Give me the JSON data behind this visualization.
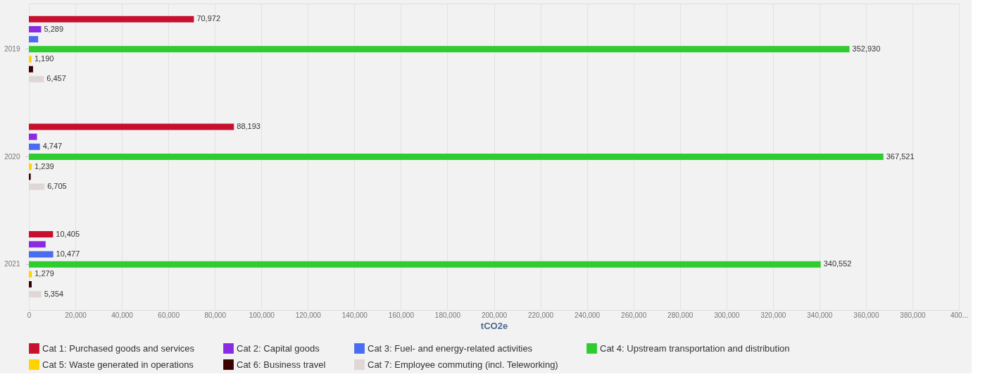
{
  "chart_data": {
    "type": "bar",
    "orientation": "horizontal",
    "categories": [
      "2019",
      "2020",
      "2021"
    ],
    "xlabel": "tCO2e",
    "series": [
      {
        "name": "Cat 1: Purchased goods and services",
        "color": "#c8102e",
        "values": [
          70972,
          88193,
          10405
        ],
        "value_labels": [
          "70,972",
          "88,193",
          "10,405"
        ]
      },
      {
        "name": "Cat 2: Capital goods",
        "color": "#8a2be2",
        "values": [
          5289,
          3500,
          7200
        ],
        "value_labels": [
          "5,289",
          null,
          null
        ]
      },
      {
        "name": "Cat 3: Fuel- and energy-related activities",
        "color": "#4a6cf0",
        "values": [
          4000,
          4747,
          10477
        ],
        "value_labels": [
          null,
          "4,747",
          "10,477"
        ]
      },
      {
        "name": "Cat 4: Upstream transportation and distribution",
        "color": "#2ecc2e",
        "values": [
          352930,
          367521,
          340552
        ],
        "value_labels": [
          "352,930",
          "367,521",
          "340,552"
        ]
      },
      {
        "name": "Cat 5: Waste generated in operations",
        "color": "#ffd200",
        "values": [
          1190,
          1239,
          1279
        ],
        "value_labels": [
          "1,190",
          "1,239",
          "1,279"
        ]
      },
      {
        "name": "Cat 6: Business travel",
        "color": "#3a0000",
        "values": [
          1800,
          800,
          1200
        ],
        "value_labels": [
          null,
          null,
          null
        ]
      },
      {
        "name": "Cat 7: Employee commuting (incl. Teleworking)",
        "color": "#e0d6d6",
        "values": [
          6457,
          6705,
          5354
        ],
        "value_labels": [
          "6,457",
          "6,705",
          "5,354"
        ]
      }
    ],
    "xlim": [
      0,
      400000
    ],
    "xticks": [
      0,
      {
        "value": 20000,
        "label": "20,000"
      },
      {
        "value": 40000,
        "label": "40,000"
      },
      {
        "value": 60000,
        "label": "60,000"
      },
      {
        "value": 80000,
        "label": "80,000"
      },
      {
        "value": 100000,
        "label": "100,000"
      },
      {
        "value": 120000,
        "label": "120,000"
      },
      {
        "value": 140000,
        "label": "140,000"
      },
      {
        "value": 160000,
        "label": "160,000"
      },
      {
        "value": 180000,
        "label": "180,000"
      },
      {
        "value": 200000,
        "label": "200,000"
      },
      {
        "value": 220000,
        "label": "220,000"
      },
      {
        "value": 240000,
        "label": "240,000"
      },
      {
        "value": 260000,
        "label": "260,000"
      },
      {
        "value": 280000,
        "label": "280,000"
      },
      {
        "value": 300000,
        "label": "300,000"
      },
      {
        "value": 320000,
        "label": "320,000"
      },
      {
        "value": 340000,
        "label": "340,000"
      },
      {
        "value": 360000,
        "label": "360,000"
      },
      {
        "value": 380000,
        "label": "380,000"
      },
      {
        "value": 400000,
        "label": "400..."
      }
    ],
    "grid": "x",
    "legend": "bottom"
  }
}
